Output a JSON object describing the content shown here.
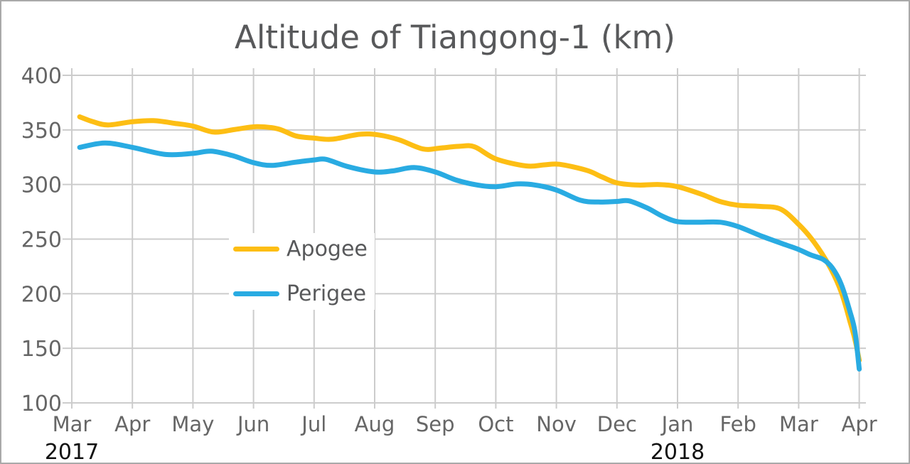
{
  "title": "Altitude of Tiangong-1 (km)",
  "legend": [
    {
      "label": "Apogee",
      "color": "#FDBE14"
    },
    {
      "label": "Perigee",
      "color": "#29ABE2"
    }
  ],
  "colors": {
    "apogee": "#FDBE14",
    "perigee": "#29ABE2",
    "gridline": "#cccccc",
    "tick_text": "#666666",
    "year_text": "#111111",
    "title_text": "#58595b"
  },
  "chart_data": {
    "type": "line",
    "title": "Altitude of Tiangong-1 (km)",
    "xlabel": "",
    "ylabel": "",
    "grid": true,
    "legend_position": "center-left",
    "ylim": [
      100,
      400
    ],
    "y_ticks": [
      400,
      350,
      300,
      250,
      200,
      150,
      100
    ],
    "x_unit_note": "x = months after Mar 2017 tick",
    "xlim": [
      0,
      13.1
    ],
    "x_tick_labels": [
      "Mar",
      "Apr",
      "May",
      "Jun",
      "Jul",
      "Aug",
      "Sep",
      "Oct",
      "Nov",
      "Dec",
      "Jan",
      "Feb",
      "Mar",
      "Apr"
    ],
    "year_labels": [
      {
        "text": "2017",
        "at_month": 0
      },
      {
        "text": "2018",
        "at_month": 10
      }
    ],
    "series": [
      {
        "name": "Apogee",
        "color": "#FDBE14",
        "points": [
          [
            0.13,
            362
          ],
          [
            0.35,
            357.5
          ],
          [
            0.6,
            354.5
          ],
          [
            1.0,
            357.5
          ],
          [
            1.35,
            358.5
          ],
          [
            1.7,
            356
          ],
          [
            2.0,
            353.5
          ],
          [
            2.35,
            348
          ],
          [
            2.7,
            350.5
          ],
          [
            3.05,
            353
          ],
          [
            3.4,
            351
          ],
          [
            3.7,
            344.5
          ],
          [
            4.0,
            342.5
          ],
          [
            4.3,
            341.5
          ],
          [
            4.75,
            346
          ],
          [
            5.05,
            345.5
          ],
          [
            5.4,
            341
          ],
          [
            5.8,
            332.5
          ],
          [
            6.1,
            333.5
          ],
          [
            6.4,
            335
          ],
          [
            6.65,
            334.5
          ],
          [
            7.0,
            323.5
          ],
          [
            7.5,
            317
          ],
          [
            7.8,
            318
          ],
          [
            8.05,
            318.5
          ],
          [
            8.5,
            313
          ],
          [
            8.75,
            307
          ],
          [
            9.0,
            301.5
          ],
          [
            9.35,
            299.5
          ],
          [
            9.7,
            300
          ],
          [
            10.0,
            298
          ],
          [
            10.4,
            291
          ],
          [
            10.7,
            284.5
          ],
          [
            11.0,
            281
          ],
          [
            11.35,
            280
          ],
          [
            11.7,
            277.5
          ],
          [
            12.0,
            263.5
          ],
          [
            12.25,
            247.5
          ],
          [
            12.5,
            226
          ],
          [
            12.7,
            202
          ],
          [
            12.85,
            174
          ],
          [
            12.93,
            158
          ],
          [
            13.0,
            139
          ]
        ]
      },
      {
        "name": "Perigee",
        "color": "#29ABE2",
        "points": [
          [
            0.13,
            334
          ],
          [
            0.55,
            338
          ],
          [
            1.0,
            334
          ],
          [
            1.55,
            327.5
          ],
          [
            2.0,
            328.5
          ],
          [
            2.3,
            330.5
          ],
          [
            2.65,
            326.5
          ],
          [
            3.0,
            320
          ],
          [
            3.3,
            317.5
          ],
          [
            3.7,
            320.5
          ],
          [
            4.0,
            322.5
          ],
          [
            4.2,
            323
          ],
          [
            4.55,
            316.5
          ],
          [
            5.0,
            311.5
          ],
          [
            5.3,
            312.5
          ],
          [
            5.65,
            315.5
          ],
          [
            6.0,
            311.5
          ],
          [
            6.35,
            304
          ],
          [
            6.7,
            299.5
          ],
          [
            7.0,
            298
          ],
          [
            7.35,
            300.5
          ],
          [
            7.65,
            299.5
          ],
          [
            8.0,
            295
          ],
          [
            8.4,
            285.5
          ],
          [
            8.7,
            284
          ],
          [
            9.0,
            284.5
          ],
          [
            9.2,
            285
          ],
          [
            9.5,
            278.5
          ],
          [
            9.75,
            271
          ],
          [
            10.0,
            266
          ],
          [
            10.35,
            265.5
          ],
          [
            10.7,
            265.5
          ],
          [
            11.0,
            261.5
          ],
          [
            11.4,
            252.5
          ],
          [
            11.8,
            244.5
          ],
          [
            12.0,
            240.5
          ],
          [
            12.2,
            235.5
          ],
          [
            12.4,
            231.5
          ],
          [
            12.55,
            224
          ],
          [
            12.7,
            209
          ],
          [
            12.85,
            183
          ],
          [
            12.93,
            165
          ],
          [
            13.0,
            131
          ]
        ]
      }
    ]
  }
}
